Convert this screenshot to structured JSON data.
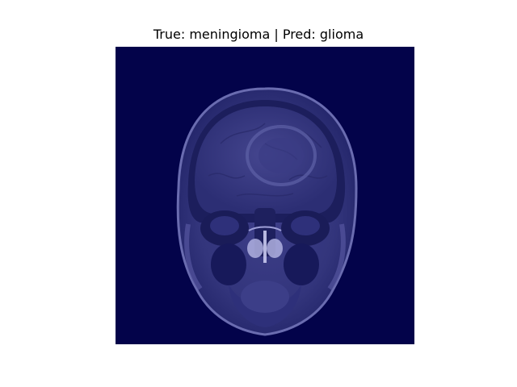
{
  "figure": {
    "title": "True: meningioma | Pred: glioma"
  },
  "image": {
    "description_icon": "mri-scan-with-heatmap-overlay-icon",
    "colormap": "jet",
    "colors": {
      "background": "#03034a",
      "heat_core": "#7a0000",
      "heat_hot": "#e61a00",
      "heat_warm": "#ffd400",
      "heat_mid": "#20c060",
      "heat_cool": "#1a4cff"
    }
  }
}
